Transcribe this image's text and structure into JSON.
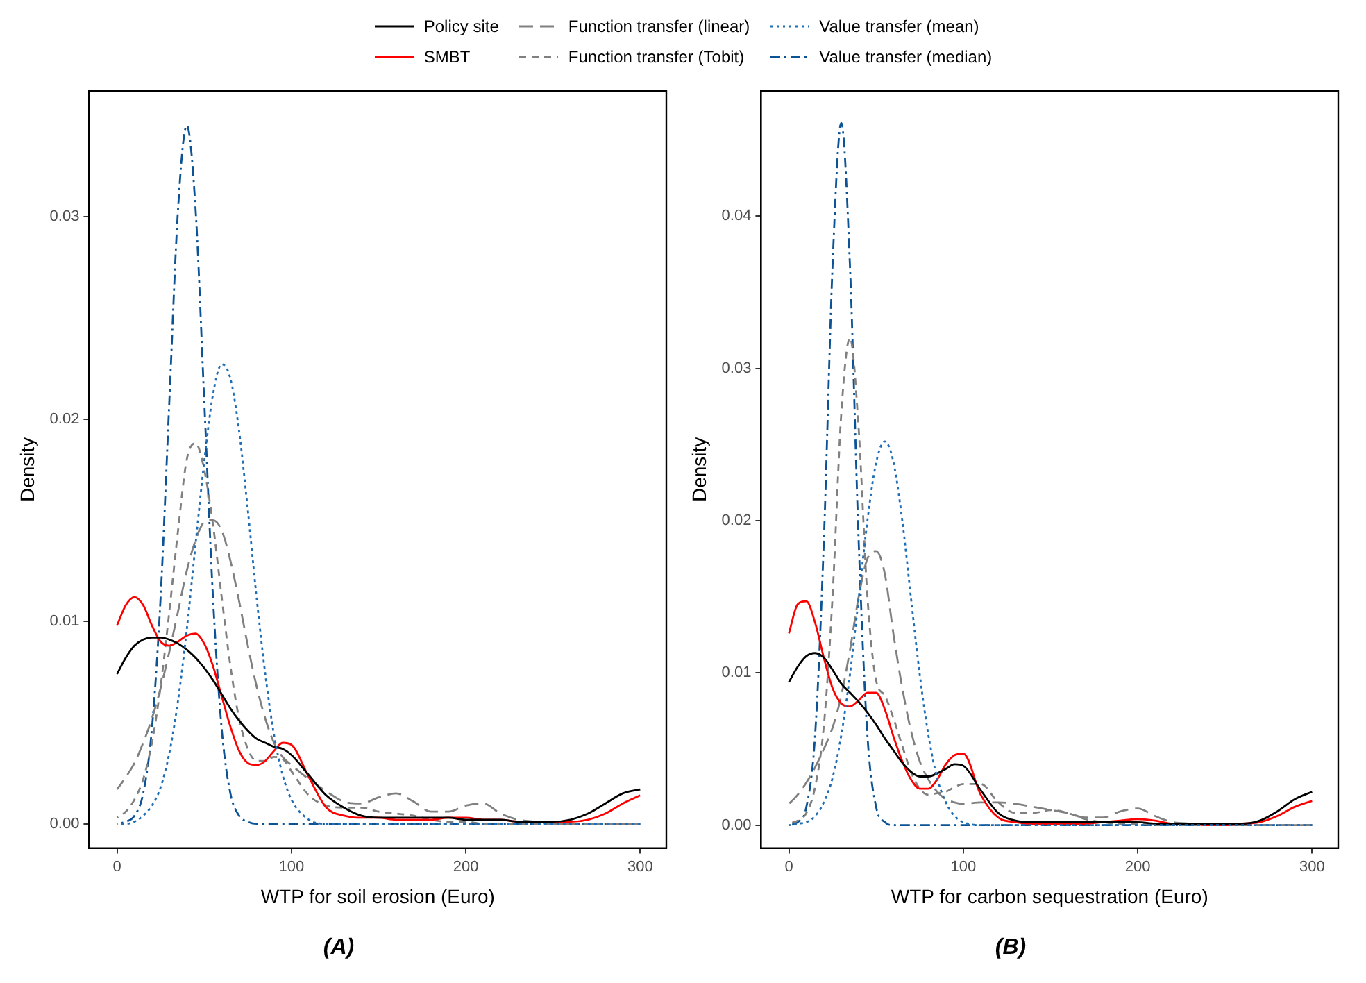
{
  "chart_data": [
    {
      "type": "line",
      "title": "(A)",
      "xlabel": "WTP for soil erosion (Euro)",
      "ylabel": "Density",
      "x": [
        0,
        5,
        10,
        15,
        20,
        25,
        30,
        35,
        40,
        45,
        50,
        55,
        60,
        65,
        70,
        75,
        80,
        85,
        90,
        95,
        100,
        110,
        120,
        130,
        140,
        150,
        160,
        170,
        180,
        190,
        200,
        210,
        220,
        230,
        240,
        250,
        260,
        270,
        280,
        290,
        300
      ],
      "xlim": [
        -16,
        315
      ],
      "xticks": [
        0,
        100,
        200,
        300
      ],
      "ylim": [
        -0.0012,
        0.0362
      ],
      "yticks": [
        {
          "value": 0,
          "label": "0.00"
        },
        {
          "value": 0.01,
          "label": "0.01"
        },
        {
          "value": 0.02,
          "label": "0.02"
        },
        {
          "value": 0.03,
          "label": "0.03"
        }
      ],
      "grid": false,
      "legend": "top",
      "marker": "none",
      "series": [
        {
          "name": "Policy site",
          "color": "#000000",
          "line_style": "solid",
          "values": [
            0.0074,
            0.0082,
            0.0088,
            0.0091,
            0.0092,
            0.0092,
            0.0091,
            0.0089,
            0.0086,
            0.0082,
            0.0077,
            0.0071,
            0.0064,
            0.0057,
            0.0051,
            0.0046,
            0.0042,
            0.004,
            0.0038,
            0.0037,
            0.0034,
            0.0024,
            0.0014,
            0.0008,
            0.0004,
            0.0003,
            0.0003,
            0.0003,
            0.0003,
            0.0003,
            0.0002,
            0.0002,
            0.0002,
            0.0001,
            0.0001,
            0.0001,
            0.0002,
            0.0005,
            0.001,
            0.0015,
            0.0017
          ]
        },
        {
          "name": "SMBT",
          "color": "#ff0000",
          "line_style": "solid",
          "values": [
            0.0098,
            0.0108,
            0.0112,
            0.0108,
            0.0098,
            0.009,
            0.0088,
            0.009,
            0.0093,
            0.0094,
            0.0089,
            0.0078,
            0.0063,
            0.0048,
            0.0036,
            0.003,
            0.0029,
            0.0031,
            0.0036,
            0.004,
            0.0039,
            0.0023,
            0.0008,
            0.0004,
            0.0003,
            0.0003,
            0.0002,
            0.0002,
            0.0002,
            0.0003,
            0.0003,
            0.0002,
            0.0002,
            0.0001,
            0.0001,
            0.0001,
            0.0001,
            0.0002,
            0.0005,
            0.001,
            0.0014
          ]
        },
        {
          "name": "Function transfer (linear)",
          "color": "#808080",
          "line_style": "longdash",
          "values": [
            0.0017,
            0.0023,
            0.003,
            0.004,
            0.0052,
            0.0067,
            0.0085,
            0.0105,
            0.0125,
            0.014,
            0.0149,
            0.015,
            0.0145,
            0.013,
            0.011,
            0.0088,
            0.0068,
            0.0052,
            0.004,
            0.0033,
            0.0029,
            0.0022,
            0.0016,
            0.0011,
            0.001,
            0.0013,
            0.0015,
            0.0011,
            0.0006,
            0.0006,
            0.0009,
            0.001,
            0.0005,
            0.0002,
            0.0001,
            0,
            0,
            0,
            0,
            0,
            0
          ]
        },
        {
          "name": "Function transfer (Tobit)",
          "color": "#808080",
          "line_style": "dashed",
          "values": [
            0.0003,
            0.0006,
            0.0012,
            0.0022,
            0.004,
            0.0068,
            0.0105,
            0.0145,
            0.018,
            0.0188,
            0.0175,
            0.0148,
            0.0112,
            0.0078,
            0.0052,
            0.0037,
            0.0031,
            0.0031,
            0.0033,
            0.0032,
            0.0026,
            0.0014,
            0.0009,
            0.0008,
            0.0008,
            0.0006,
            0.0005,
            0.0004,
            0.0002,
            0.0001,
            0.0001,
            0,
            0,
            0,
            0,
            0,
            0,
            0,
            0,
            0,
            0
          ]
        },
        {
          "name": "Value transfer (mean)",
          "color": "#1f6db5",
          "line_style": "dotted",
          "values": [
            0,
            0,
            0.0001,
            0.0004,
            0.0009,
            0.0018,
            0.0035,
            0.0061,
            0.0096,
            0.0138,
            0.0179,
            0.0212,
            0.0227,
            0.022,
            0.0194,
            0.0155,
            0.0112,
            0.0074,
            0.0044,
            0.0024,
            0.0012,
            0.0002,
            0,
            0,
            0,
            0,
            0,
            0,
            0,
            0,
            0,
            0,
            0,
            0,
            0,
            0,
            0,
            0,
            0,
            0,
            0
          ]
        },
        {
          "name": "Value transfer (median)",
          "color": "#0b5394",
          "line_style": "dashdot",
          "values": [
            0,
            0.0001,
            0.0004,
            0.0015,
            0.0047,
            0.0112,
            0.0209,
            0.0304,
            0.0345,
            0.0304,
            0.0209,
            0.0112,
            0.0047,
            0.0015,
            0.0004,
            0.0001,
            0,
            0,
            0,
            0,
            0,
            0,
            0,
            0,
            0,
            0,
            0,
            0,
            0,
            0,
            0,
            0,
            0,
            0,
            0,
            0,
            0,
            0,
            0,
            0,
            0
          ]
        }
      ]
    },
    {
      "type": "line",
      "title": "(B)",
      "xlabel": "WTP for carbon sequestration (Euro)",
      "ylabel": "Density",
      "x": [
        0,
        5,
        10,
        15,
        20,
        25,
        30,
        35,
        40,
        45,
        50,
        55,
        60,
        65,
        70,
        75,
        80,
        85,
        90,
        95,
        100,
        110,
        120,
        130,
        140,
        150,
        160,
        170,
        180,
        190,
        200,
        210,
        220,
        230,
        240,
        250,
        260,
        270,
        280,
        290,
        300
      ],
      "xlim": [
        -16,
        315
      ],
      "xticks": [
        0,
        100,
        200,
        300
      ],
      "ylim": [
        -0.0015,
        0.0482
      ],
      "yticks": [
        {
          "value": 0,
          "label": "0.00"
        },
        {
          "value": 0.01,
          "label": "0.01"
        },
        {
          "value": 0.02,
          "label": "0.02"
        },
        {
          "value": 0.03,
          "label": "0.03"
        },
        {
          "value": 0.04,
          "label": "0.04"
        }
      ],
      "grid": false,
      "marker": "none",
      "series": [
        {
          "color": "#000000",
          "line_style": "solid",
          "values": [
            0.0094,
            0.0104,
            0.0111,
            0.0113,
            0.011,
            0.0102,
            0.0093,
            0.0087,
            0.0081,
            0.0074,
            0.0066,
            0.0057,
            0.0049,
            0.0041,
            0.0035,
            0.0032,
            0.0032,
            0.0034,
            0.0037,
            0.004,
            0.0039,
            0.0023,
            0.0008,
            0.0003,
            0.0002,
            0.0002,
            0.0002,
            0.0002,
            0.0002,
            0.0002,
            0.0002,
            0.0001,
            0.0001,
            0.0001,
            0.0001,
            0.0001,
            0.0001,
            0.0003,
            0.0009,
            0.0017,
            0.0022
          ]
        },
        {
          "color": "#ff0000",
          "line_style": "solid",
          "values": [
            0.0126,
            0.0145,
            0.0147,
            0.0133,
            0.011,
            0.009,
            0.008,
            0.0078,
            0.0082,
            0.0087,
            0.0087,
            0.0076,
            0.0058,
            0.0042,
            0.003,
            0.0024,
            0.0024,
            0.003,
            0.004,
            0.0046,
            0.0047,
            0.002,
            0.0005,
            0.0002,
            0.0001,
            0.0001,
            0.0001,
            0.0001,
            0.0002,
            0.0003,
            0.0004,
            0.0003,
            0.0001,
            0.0001,
            0,
            0,
            0.0001,
            0.0002,
            0.0006,
            0.0012,
            0.0016
          ]
        },
        {
          "color": "#808080",
          "line_style": "longdash",
          "values": [
            0.0014,
            0.002,
            0.0028,
            0.0038,
            0.005,
            0.0064,
            0.0085,
            0.0115,
            0.015,
            0.0175,
            0.018,
            0.0165,
            0.0125,
            0.009,
            0.0062,
            0.0042,
            0.003,
            0.0022,
            0.0017,
            0.0015,
            0.0014,
            0.0015,
            0.0015,
            0.0014,
            0.0012,
            0.001,
            0.0008,
            0.0005,
            0.0005,
            0.0009,
            0.0011,
            0.0006,
            0.0002,
            0.0001,
            0,
            0,
            0,
            0,
            0,
            0,
            0
          ]
        },
        {
          "color": "#808080",
          "line_style": "dashed",
          "values": [
            0.0001,
            0.0003,
            0.0008,
            0.0025,
            0.0065,
            0.015,
            0.027,
            0.032,
            0.026,
            0.015,
            0.0095,
            0.0085,
            0.007,
            0.0052,
            0.0035,
            0.0024,
            0.002,
            0.0021,
            0.0022,
            0.0025,
            0.0027,
            0.0027,
            0.0015,
            0.0008,
            0.0008,
            0.001,
            0.0008,
            0.0004,
            0.0002,
            0.0001,
            0.0001,
            0,
            0,
            0,
            0,
            0,
            0,
            0,
            0,
            0,
            0
          ]
        },
        {
          "color": "#1f6db5",
          "line_style": "dotted",
          "values": [
            0,
            0.0001,
            0.0002,
            0.0006,
            0.0015,
            0.0031,
            0.0059,
            0.0099,
            0.0149,
            0.02,
            0.0238,
            0.0252,
            0.0238,
            0.02,
            0.0149,
            0.0099,
            0.0059,
            0.0031,
            0.0015,
            0.0006,
            0.0002,
            0,
            0,
            0,
            0,
            0,
            0,
            0,
            0,
            0,
            0,
            0,
            0,
            0,
            0,
            0,
            0,
            0,
            0,
            0,
            0
          ]
        },
        {
          "color": "#0b5394",
          "line_style": "dashdot",
          "values": [
            0,
            0.0002,
            0.0012,
            0.0059,
            0.0186,
            0.0367,
            0.0461,
            0.0367,
            0.0186,
            0.0059,
            0.0012,
            0.0002,
            0,
            0,
            0,
            0,
            0,
            0,
            0,
            0,
            0,
            0,
            0,
            0,
            0,
            0,
            0,
            0,
            0,
            0,
            0,
            0,
            0,
            0,
            0,
            0,
            0,
            0,
            0,
            0,
            0
          ]
        }
      ]
    }
  ]
}
